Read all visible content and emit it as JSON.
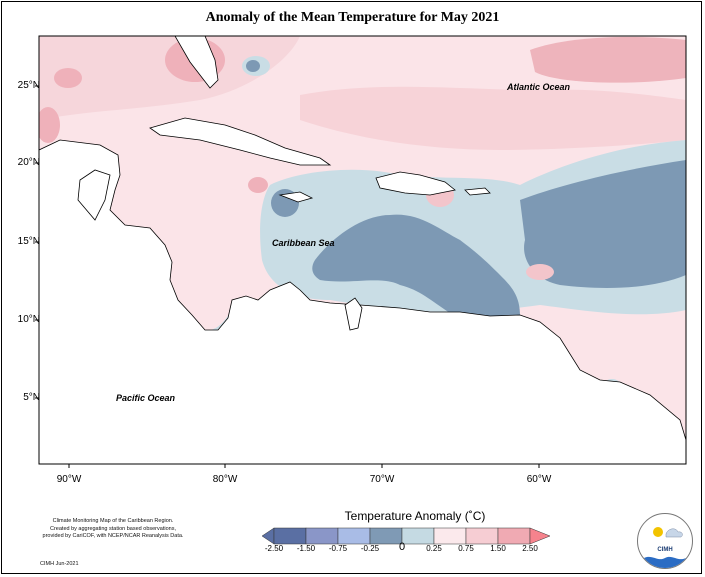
{
  "title": "Anomaly of the Mean Temperature for May 2021",
  "lat_labels": [
    "25°N",
    "20°N",
    "15°N",
    "10°N",
    "5°N"
  ],
  "lon_labels": [
    "90°W",
    "80°W",
    "70°W",
    "60°W"
  ],
  "ocean_labels": {
    "atlantic": "Atlantic Ocean",
    "caribbean": "Caribbean Sea",
    "pacific": "Pacific Ocean"
  },
  "credit": {
    "line1": "Climate Monitoring Map of the Caribbean Region.",
    "line2": "Created by aggregating station based observations,",
    "line3": "provided by CariCOF, with NCEP/NCAR Reanalysis Data.",
    "date": "CIMH Jun-2021"
  },
  "legend": {
    "title": "Temperature Anomaly (˚C)",
    "ticks": [
      "-2.50",
      "-1.50",
      "-0.75",
      "-0.25",
      "0",
      "0.25",
      "0.75",
      "1.50",
      "2.50"
    ],
    "colors": [
      "#5a6fa3",
      "#8a96c8",
      "#a9bce6",
      "#7f9ab5",
      "#c5dae3",
      "#fbe9ec",
      "#f6cdd3",
      "#f0aab3",
      "#f6838d"
    ]
  },
  "logo": {
    "text": "CIMH"
  },
  "colors": {
    "warm_light": "#fbe4e8",
    "warm_mid": "#f3c5cb",
    "warm_strong": "#eeaab3",
    "cool_light": "#c9dde5",
    "cool_mid": "#7d99b4",
    "land_outline": "#000000"
  }
}
